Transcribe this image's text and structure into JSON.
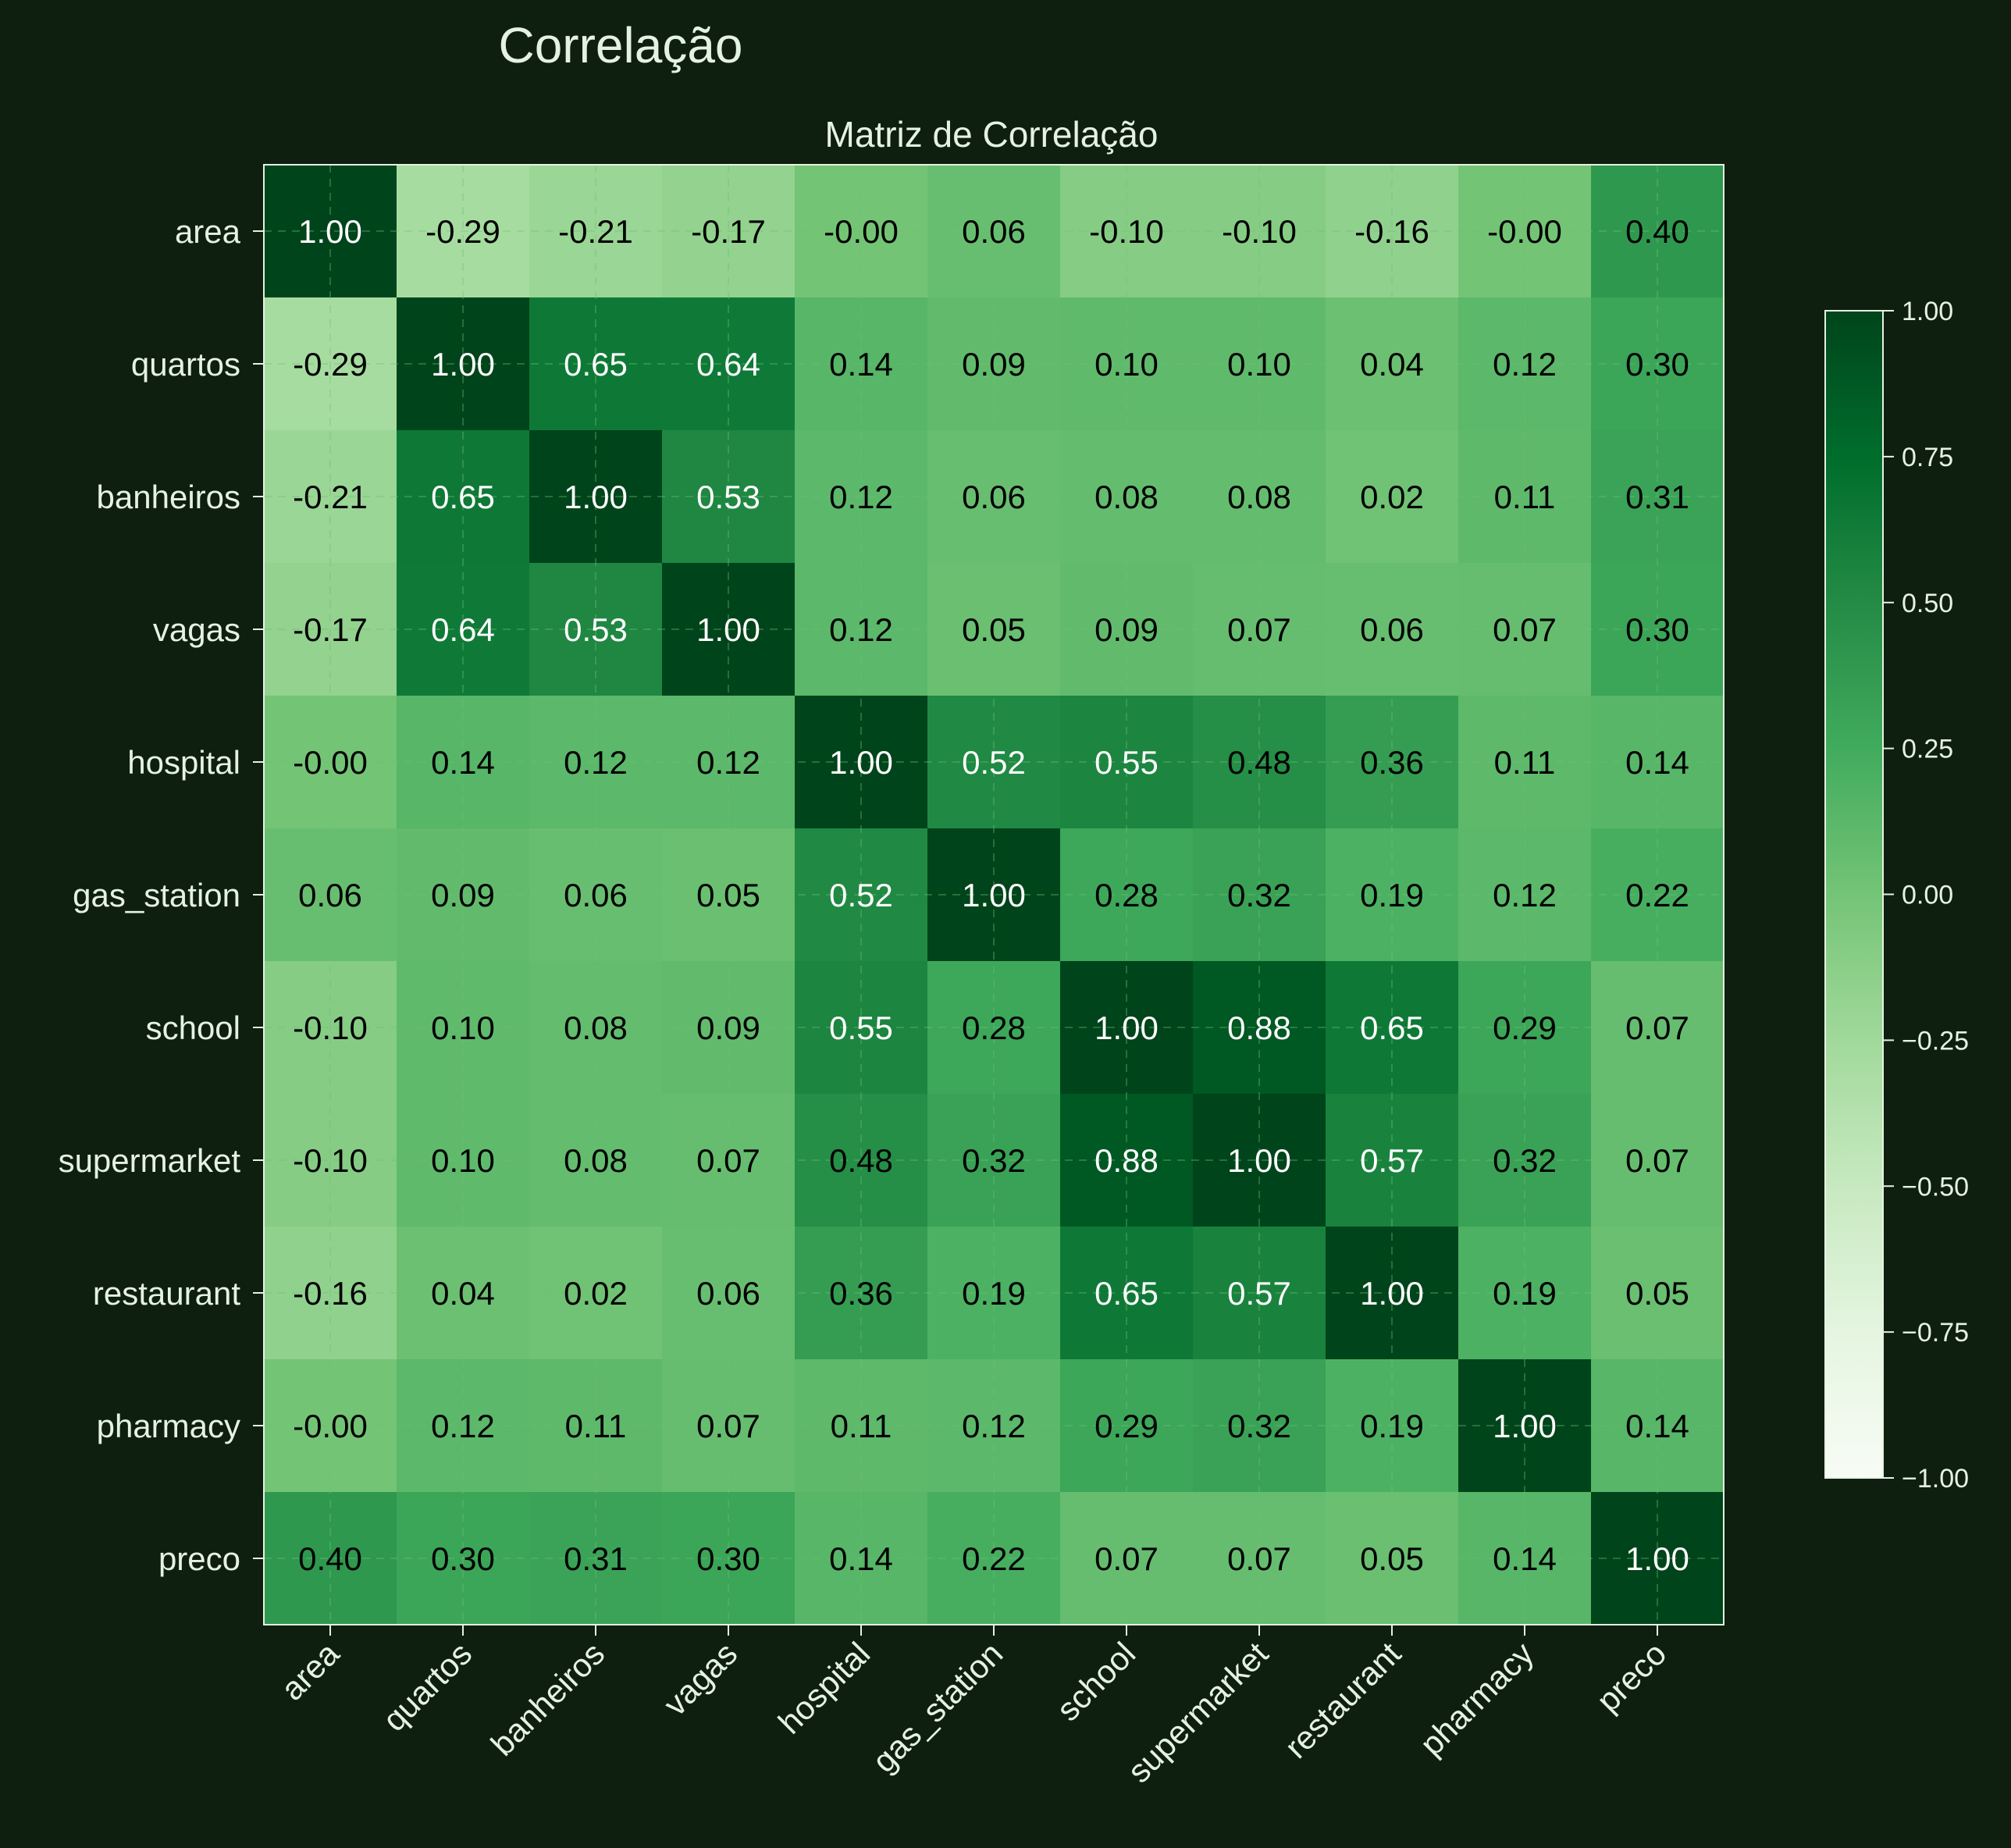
{
  "figure": {
    "suptitle": "Correlação"
  },
  "chart_data": {
    "type": "heatmap",
    "title": "Matriz de Correlação",
    "xlabel": "",
    "ylabel": "",
    "labels": [
      "area",
      "quartos",
      "banheiros",
      "vagas",
      "hospital",
      "gas_station",
      "school",
      "supermarket",
      "restaurant",
      "pharmacy",
      "preco"
    ],
    "matrix": [
      [
        1.0,
        -0.29,
        -0.21,
        -0.17,
        -0.0,
        0.06,
        -0.1,
        -0.1,
        -0.16,
        -0.0,
        0.4
      ],
      [
        -0.29,
        1.0,
        0.65,
        0.64,
        0.14,
        0.09,
        0.1,
        0.1,
        0.04,
        0.12,
        0.3
      ],
      [
        -0.21,
        0.65,
        1.0,
        0.53,
        0.12,
        0.06,
        0.08,
        0.08,
        0.02,
        0.11,
        0.31
      ],
      [
        -0.17,
        0.64,
        0.53,
        1.0,
        0.12,
        0.05,
        0.09,
        0.07,
        0.06,
        0.07,
        0.3
      ],
      [
        -0.0,
        0.14,
        0.12,
        0.12,
        1.0,
        0.52,
        0.55,
        0.48,
        0.36,
        0.11,
        0.14
      ],
      [
        0.06,
        0.09,
        0.06,
        0.05,
        0.52,
        1.0,
        0.28,
        0.32,
        0.19,
        0.12,
        0.22
      ],
      [
        -0.1,
        0.1,
        0.08,
        0.09,
        0.55,
        0.28,
        1.0,
        0.88,
        0.65,
        0.29,
        0.07
      ],
      [
        -0.1,
        0.1,
        0.08,
        0.07,
        0.48,
        0.32,
        0.88,
        1.0,
        0.57,
        0.32,
        0.07
      ],
      [
        -0.16,
        0.04,
        0.02,
        0.06,
        0.36,
        0.19,
        0.65,
        0.57,
        1.0,
        0.19,
        0.05
      ],
      [
        -0.0,
        0.12,
        0.11,
        0.07,
        0.11,
        0.12,
        0.29,
        0.32,
        0.19,
        1.0,
        0.14
      ],
      [
        0.4,
        0.3,
        0.31,
        0.3,
        0.14,
        0.22,
        0.07,
        0.07,
        0.05,
        0.14,
        1.0
      ]
    ],
    "value_labels": [
      [
        "1.00",
        "-0.29",
        "-0.21",
        "-0.17",
        "-0.00",
        "0.06",
        "-0.10",
        "-0.10",
        "-0.16",
        "-0.00",
        "0.40"
      ],
      [
        "-0.29",
        "1.00",
        "0.65",
        "0.64",
        "0.14",
        "0.09",
        "0.10",
        "0.10",
        "0.04",
        "0.12",
        "0.30"
      ],
      [
        "-0.21",
        "0.65",
        "1.00",
        "0.53",
        "0.12",
        "0.06",
        "0.08",
        "0.08",
        "0.02",
        "0.11",
        "0.31"
      ],
      [
        "-0.17",
        "0.64",
        "0.53",
        "1.00",
        "0.12",
        "0.05",
        "0.09",
        "0.07",
        "0.06",
        "0.07",
        "0.30"
      ],
      [
        "-0.00",
        "0.14",
        "0.12",
        "0.12",
        "1.00",
        "0.52",
        "0.55",
        "0.48",
        "0.36",
        "0.11",
        "0.14"
      ],
      [
        "0.06",
        "0.09",
        "0.06",
        "0.05",
        "0.52",
        "1.00",
        "0.28",
        "0.32",
        "0.19",
        "0.12",
        "0.22"
      ],
      [
        "-0.10",
        "0.10",
        "0.08",
        "0.09",
        "0.55",
        "0.28",
        "1.00",
        "0.88",
        "0.65",
        "0.29",
        "0.07"
      ],
      [
        "-0.10",
        "0.10",
        "0.08",
        "0.07",
        "0.48",
        "0.32",
        "0.88",
        "1.00",
        "0.57",
        "0.32",
        "0.07"
      ],
      [
        "-0.16",
        "0.04",
        "0.02",
        "0.06",
        "0.36",
        "0.19",
        "0.65",
        "0.57",
        "1.00",
        "0.19",
        "0.05"
      ],
      [
        "-0.00",
        "0.12",
        "0.11",
        "0.07",
        "0.11",
        "0.12",
        "0.29",
        "0.32",
        "0.19",
        "1.00",
        "0.14"
      ],
      [
        "0.40",
        "0.30",
        "0.31",
        "0.30",
        "0.14",
        "0.22",
        "0.07",
        "0.07",
        "0.05",
        "0.14",
        "1.00"
      ]
    ],
    "vmin": -1.0,
    "vmax": 1.0,
    "colormap": "Greens",
    "colorbar": {
      "ticks": [
        1.0,
        0.75,
        0.5,
        0.25,
        0.0,
        -0.25,
        -0.5,
        -0.75,
        -1.0
      ],
      "tick_labels": [
        "1.00",
        "0.75",
        "0.50",
        "0.25",
        "0.00",
        "−0.25",
        "−0.50",
        "−0.75",
        "−1.00"
      ]
    },
    "grid": true,
    "xtick_rotation": "45 degrees",
    "colors": {
      "background": "#0e1f0f",
      "text": "#e6f2e1",
      "grid": "#6fbf73"
    }
  }
}
